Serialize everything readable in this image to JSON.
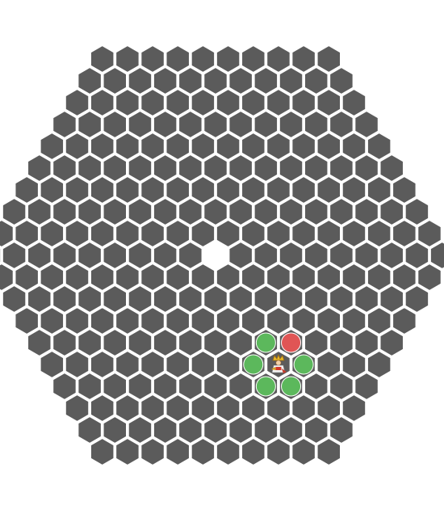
{
  "board": {
    "shape": "hexagon-of-hexagons",
    "radius": 9,
    "colors": {
      "tile": "#5b5b5b",
      "tile_stroke": "#ffffff",
      "background": "#ffffff",
      "valid_move": "#5cb85c",
      "threat_move": "#e05555"
    },
    "removed_tiles": [
      {
        "q": 0,
        "r": 0
      }
    ],
    "player": {
      "piece": "crowned-figure-icon",
      "q": 0,
      "r": 5
    },
    "move_markers": [
      {
        "q": 0,
        "r": 4,
        "kind": "valid"
      },
      {
        "q": 1,
        "r": 4,
        "kind": "threat"
      },
      {
        "q": 1,
        "r": 5,
        "kind": "valid"
      },
      {
        "q": 0,
        "r": 6,
        "kind": "valid"
      },
      {
        "q": -1,
        "r": 6,
        "kind": "valid"
      },
      {
        "q": -1,
        "r": 5,
        "kind": "valid"
      }
    ]
  }
}
